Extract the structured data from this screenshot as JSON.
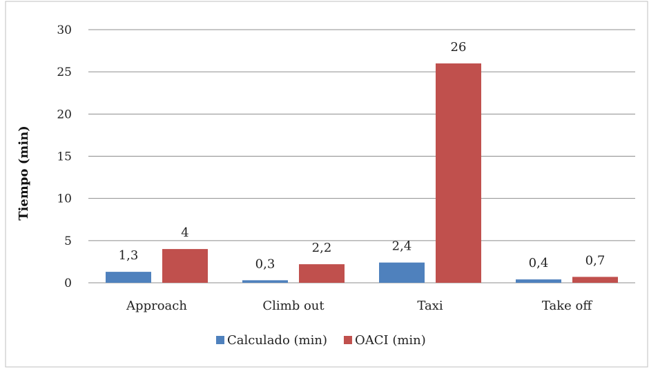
{
  "chart_data": {
    "type": "bar",
    "categories": [
      "Approach",
      "Climb out",
      "Taxi",
      "Take off"
    ],
    "series": [
      {
        "name": "Calculado (min)",
        "values": [
          1.3,
          0.3,
          2.4,
          0.4
        ],
        "labels": [
          "1,3",
          "0,3",
          "2,4",
          "0,4"
        ],
        "color": "#4f81bd"
      },
      {
        "name": "OACI (min)",
        "values": [
          4,
          2.2,
          26,
          0.7
        ],
        "labels": [
          "4",
          "2,2",
          "26",
          "0,7"
        ],
        "color": "#c0504d"
      }
    ],
    "title": "",
    "xlabel": "",
    "ylabel": "Tiempo (min)",
    "ylim": [
      0,
      30
    ],
    "yticks": [
      0,
      5,
      10,
      15,
      20,
      25,
      30
    ],
    "grid": true,
    "legend_position": "bottom"
  }
}
